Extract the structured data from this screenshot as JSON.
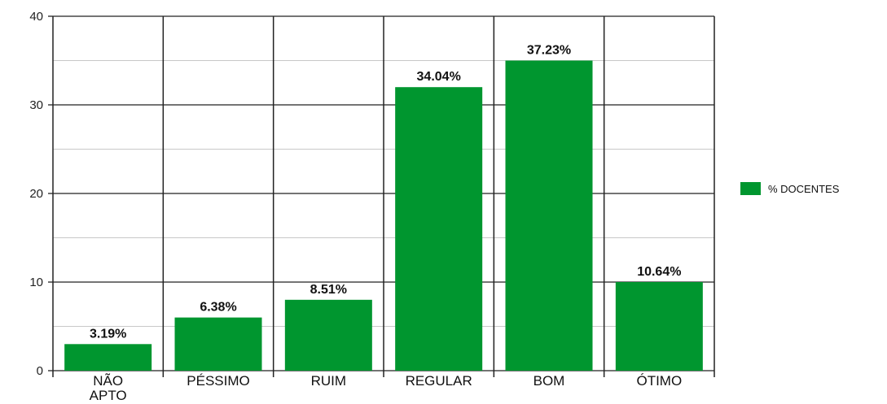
{
  "chart_data": {
    "type": "bar",
    "categories": [
      "NÃO APTO",
      "PÉSSIMO",
      "RUIM",
      "REGULAR",
      "BOM",
      "ÓTIMO"
    ],
    "series": [
      {
        "name": "% DOCENTES",
        "values": [
          3,
          6,
          8,
          32,
          35,
          10
        ],
        "data_labels": [
          "3.19%",
          "6.38%",
          "8.51%",
          "34.04%",
          "37.23%",
          "10.64%"
        ]
      }
    ],
    "ylim": [
      0,
      40
    ],
    "yticks": [
      "0",
      "10",
      "20",
      "30",
      "40"
    ],
    "grid": true,
    "legend_position": "right",
    "bar_color": "#00962f"
  }
}
